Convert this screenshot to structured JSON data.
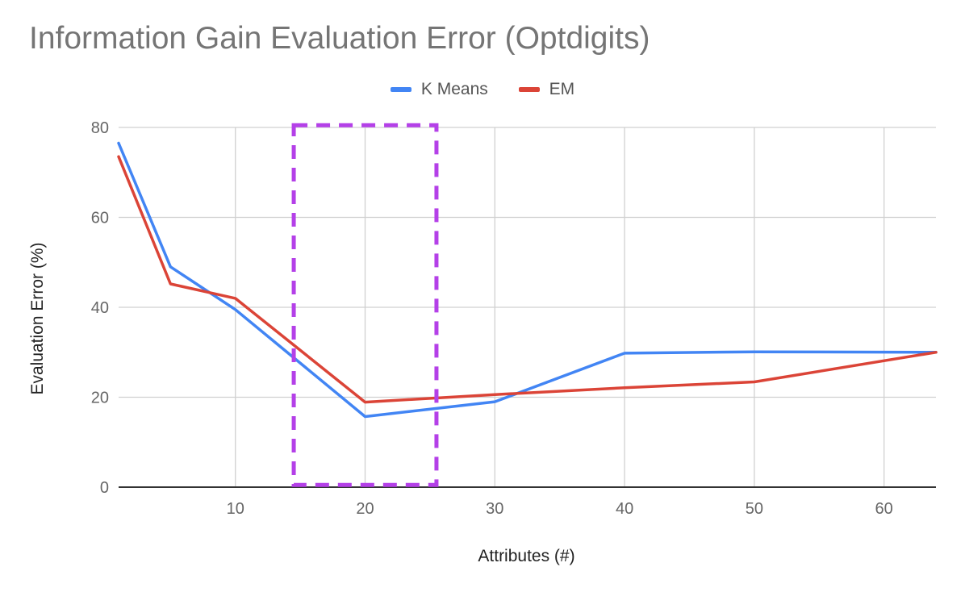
{
  "chart_data": {
    "type": "line",
    "title": "Information Gain Evaluation Error (Optdigits)",
    "xlabel": "Attributes (#)",
    "ylabel": "Evaluation Error (%)",
    "xlim": [
      1,
      64
    ],
    "ylim": [
      0,
      80
    ],
    "x_ticks": [
      10,
      20,
      30,
      40,
      50,
      60
    ],
    "y_ticks": [
      0,
      20,
      40,
      60,
      80
    ],
    "grid": true,
    "legend_position": "top",
    "series": [
      {
        "name": "K Means",
        "color": "#4285F4",
        "points": [
          [
            1,
            76.5
          ],
          [
            5,
            49
          ],
          [
            10,
            39.5
          ],
          [
            20,
            15.7
          ],
          [
            30,
            19
          ],
          [
            40,
            29.8
          ],
          [
            50,
            30.1
          ],
          [
            64,
            30
          ]
        ]
      },
      {
        "name": "EM",
        "color": "#DB4437",
        "points": [
          [
            1,
            73.5
          ],
          [
            5,
            45.2
          ],
          [
            10,
            42
          ],
          [
            20,
            18.9
          ],
          [
            30,
            20.6
          ],
          [
            40,
            22.1
          ],
          [
            50,
            23.4
          ],
          [
            64,
            30
          ]
        ]
      }
    ],
    "highlight_box": {
      "x_range": [
        14.5,
        25.5
      ],
      "y_range": [
        0.5,
        80.5
      ],
      "color": "#B440E8",
      "style": "dashed"
    }
  }
}
